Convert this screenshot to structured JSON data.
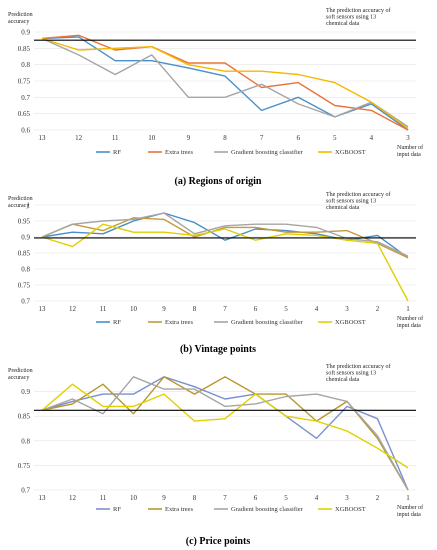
{
  "chart_data": [
    {
      "type": "line",
      "caption": "(a) Regions of origin",
      "ylabel": "Prediction accuracy",
      "xlabel": "Number of input data",
      "reference_label": "The prediction accuracy of soft sensors using 13 chemical data",
      "reference_value": 0.875,
      "ylim": [
        0.6,
        0.9
      ],
      "yticks": [
        0.6,
        0.65,
        0.7,
        0.75,
        0.8,
        0.85,
        0.9
      ],
      "yticks_text": [
        "0.6",
        "0.65",
        "0.7",
        "0.75",
        "0.8",
        "0.85",
        "0.9"
      ],
      "x": [
        "13",
        "12",
        "11",
        "10",
        "9",
        "8",
        "7",
        "6",
        "5",
        "4",
        "3"
      ],
      "series": [
        {
          "name": "RF",
          "color": "#4a90c8",
          "values": [
            0.88,
            0.885,
            0.812,
            0.812,
            0.79,
            0.765,
            0.66,
            0.7,
            0.64,
            0.68,
            0.6
          ]
        },
        {
          "name": "Extra trees",
          "color": "#e8743b",
          "values": [
            0.88,
            0.89,
            0.845,
            0.855,
            0.805,
            0.805,
            0.73,
            0.745,
            0.675,
            0.66,
            0.6
          ]
        },
        {
          "name": "Gradient boosting classifier",
          "color": "#a5a5a5",
          "values": [
            0.88,
            0.83,
            0.77,
            0.83,
            0.7,
            0.7,
            0.74,
            0.68,
            0.64,
            0.685,
            0.61
          ]
        },
        {
          "name": "XGBOOST",
          "color": "#f5b800",
          "values": [
            0.88,
            0.845,
            0.85,
            0.855,
            0.8,
            0.78,
            0.78,
            0.77,
            0.745,
            0.685,
            0.605
          ]
        }
      ]
    },
    {
      "type": "line",
      "caption": "(b) Vintage points",
      "ylabel": "Prediction accuracy",
      "xlabel": "Number of input data",
      "reference_label": "The prediction accuracy of soft sensors using 13 chemical data",
      "reference_value": 0.897,
      "ylim": [
        0.7,
        1.0
      ],
      "yticks": [
        0.7,
        0.75,
        0.8,
        0.85,
        0.9,
        0.95,
        1.0
      ],
      "yticks_text": [
        "0.7",
        "0.75",
        "0.8",
        "0.85",
        "0.9",
        "0.95",
        "1"
      ],
      "x": [
        "13",
        "12",
        "11",
        "10",
        "9",
        "8",
        "7",
        "6",
        "5",
        "4",
        "3",
        "2",
        "1"
      ],
      "series": [
        {
          "name": "RF",
          "color": "#4a90c8",
          "values": [
            0.9,
            0.915,
            0.91,
            0.95,
            0.975,
            0.945,
            0.89,
            0.925,
            0.92,
            0.91,
            0.89,
            0.905,
            0.835
          ]
        },
        {
          "name": "Extra trees",
          "color": "#c59a3a",
          "values": [
            0.9,
            0.94,
            0.92,
            0.96,
            0.955,
            0.9,
            0.93,
            0.93,
            0.915,
            0.915,
            0.92,
            0.88,
            0.835
          ]
        },
        {
          "name": "Gradient boosting classifier",
          "color": "#a5a5a5",
          "values": [
            0.9,
            0.94,
            0.95,
            0.955,
            0.975,
            0.91,
            0.935,
            0.94,
            0.94,
            0.93,
            0.895,
            0.885,
            0.84
          ]
        },
        {
          "name": "XGBOOST",
          "color": "#e0d000",
          "values": [
            0.9,
            0.87,
            0.94,
            0.915,
            0.915,
            0.905,
            0.925,
            0.89,
            0.91,
            0.905,
            0.89,
            0.88,
            0.7
          ]
        }
      ]
    },
    {
      "type": "line",
      "caption": "(c) Price points",
      "ylabel": "Prediction accuracy",
      "xlabel": "Number of input data",
      "reference_label": "The prediction accuracy of soft sensors using 13 chemical data",
      "reference_value": 0.862,
      "ylim": [
        0.7,
        0.95
      ],
      "yticks": [
        0.7,
        0.75,
        0.8,
        0.85,
        0.9
      ],
      "yticks_text": [
        "0.7",
        "0.75",
        "0.8",
        "0.85",
        "0.9"
      ],
      "x": [
        "13",
        "12",
        "11",
        "10",
        "9",
        "8",
        "7",
        "6",
        "5",
        "4",
        "3",
        "2",
        "1"
      ],
      "series": [
        {
          "name": "RF",
          "color": "#7a8fd0",
          "values": [
            0.862,
            0.88,
            0.895,
            0.895,
            0.93,
            0.91,
            0.885,
            0.895,
            0.85,
            0.805,
            0.87,
            0.845,
            0.7
          ]
        },
        {
          "name": "Extra trees",
          "color": "#b8962e",
          "values": [
            0.862,
            0.875,
            0.915,
            0.855,
            0.93,
            0.895,
            0.93,
            0.895,
            0.895,
            0.84,
            0.88,
            0.805,
            0.7
          ]
        },
        {
          "name": "Gradient boosting classifier",
          "color": "#a5a5a5",
          "values": [
            0.862,
            0.885,
            0.855,
            0.93,
            0.905,
            0.905,
            0.87,
            0.875,
            0.89,
            0.895,
            0.88,
            0.81,
            0.7
          ]
        },
        {
          "name": "XGBOOST",
          "color": "#e0d000",
          "values": [
            0.862,
            0.915,
            0.87,
            0.87,
            0.895,
            0.84,
            0.845,
            0.895,
            0.85,
            0.84,
            0.82,
            0.785,
            0.745
          ]
        }
      ]
    }
  ]
}
